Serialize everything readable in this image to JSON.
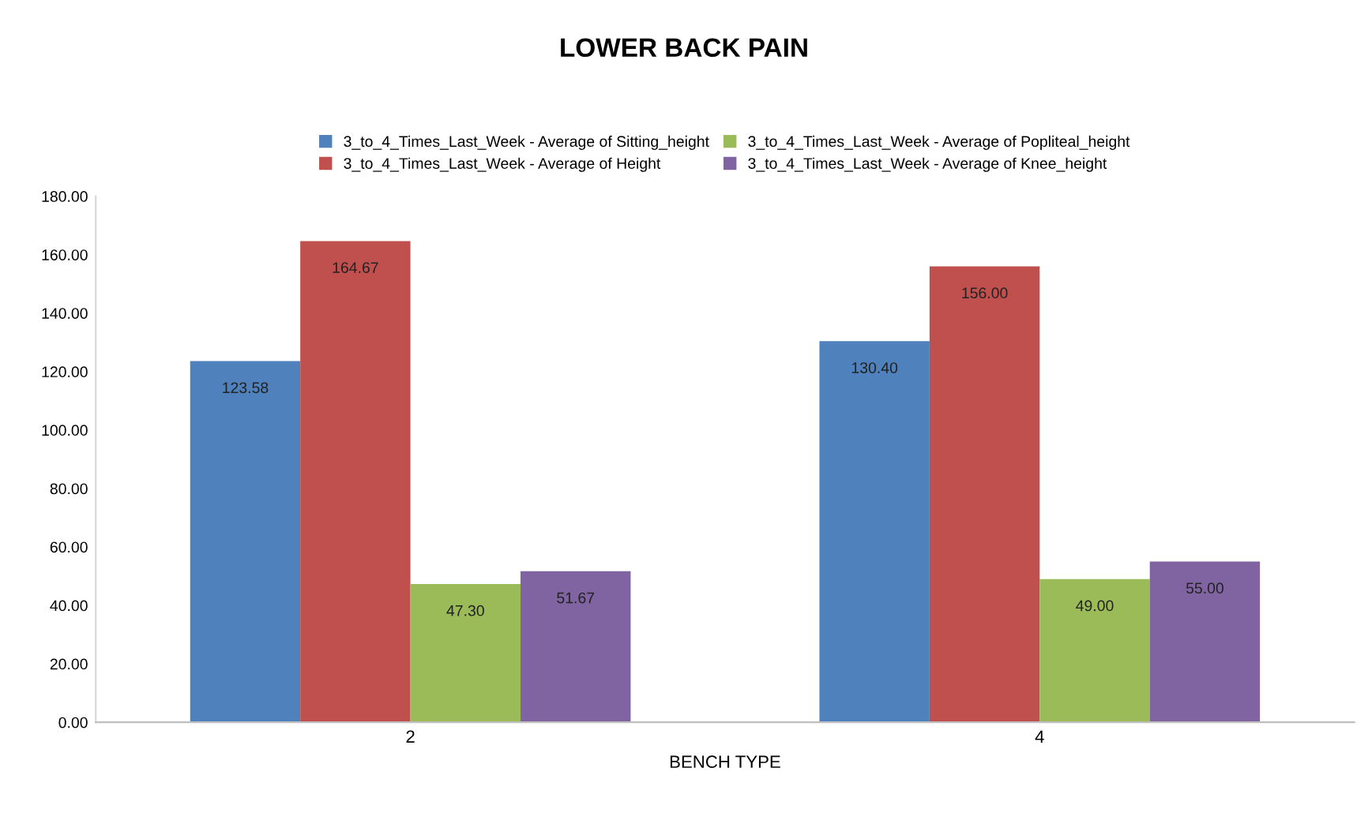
{
  "chart_data": {
    "type": "bar",
    "title": "LOWER BACK PAIN",
    "xlabel": "BENCH TYPE",
    "categories": [
      "2",
      "4"
    ],
    "series": [
      {
        "name": "3_to_4_Times_Last_Week - Average of Sitting_height",
        "color": "#4f81bd",
        "values": [
          123.58,
          130.4
        ],
        "value_labels": [
          "123.58",
          "130.40"
        ]
      },
      {
        "name": "3_to_4_Times_Last_Week - Average of Height",
        "color": "#c0504d",
        "values": [
          164.67,
          156.0
        ],
        "value_labels": [
          "164.67",
          "156.00"
        ]
      },
      {
        "name": "3_to_4_Times_Last_Week - Average of Popliteal_height",
        "color": "#9bbb59",
        "values": [
          47.3,
          49.0
        ],
        "value_labels": [
          "47.30",
          "49.00"
        ]
      },
      {
        "name": "3_to_4_Times_Last_Week - Average of Knee_height",
        "color": "#8064a2",
        "values": [
          51.67,
          55.0
        ],
        "value_labels": [
          "51.67",
          "55.00"
        ]
      }
    ],
    "ylim": [
      0,
      180
    ],
    "yticks": [
      {
        "value": 0,
        "label": "0.00"
      },
      {
        "value": 20,
        "label": "20.00"
      },
      {
        "value": 40,
        "label": "40.00"
      },
      {
        "value": 60,
        "label": "60.00"
      },
      {
        "value": 80,
        "label": "80.00"
      },
      {
        "value": 100,
        "label": "100.00"
      },
      {
        "value": 120,
        "label": "120.00"
      },
      {
        "value": 140,
        "label": "140.00"
      },
      {
        "value": 160,
        "label": "160.00"
      },
      {
        "value": 180,
        "label": "180.00"
      }
    ],
    "grid": false,
    "legend": "top"
  }
}
